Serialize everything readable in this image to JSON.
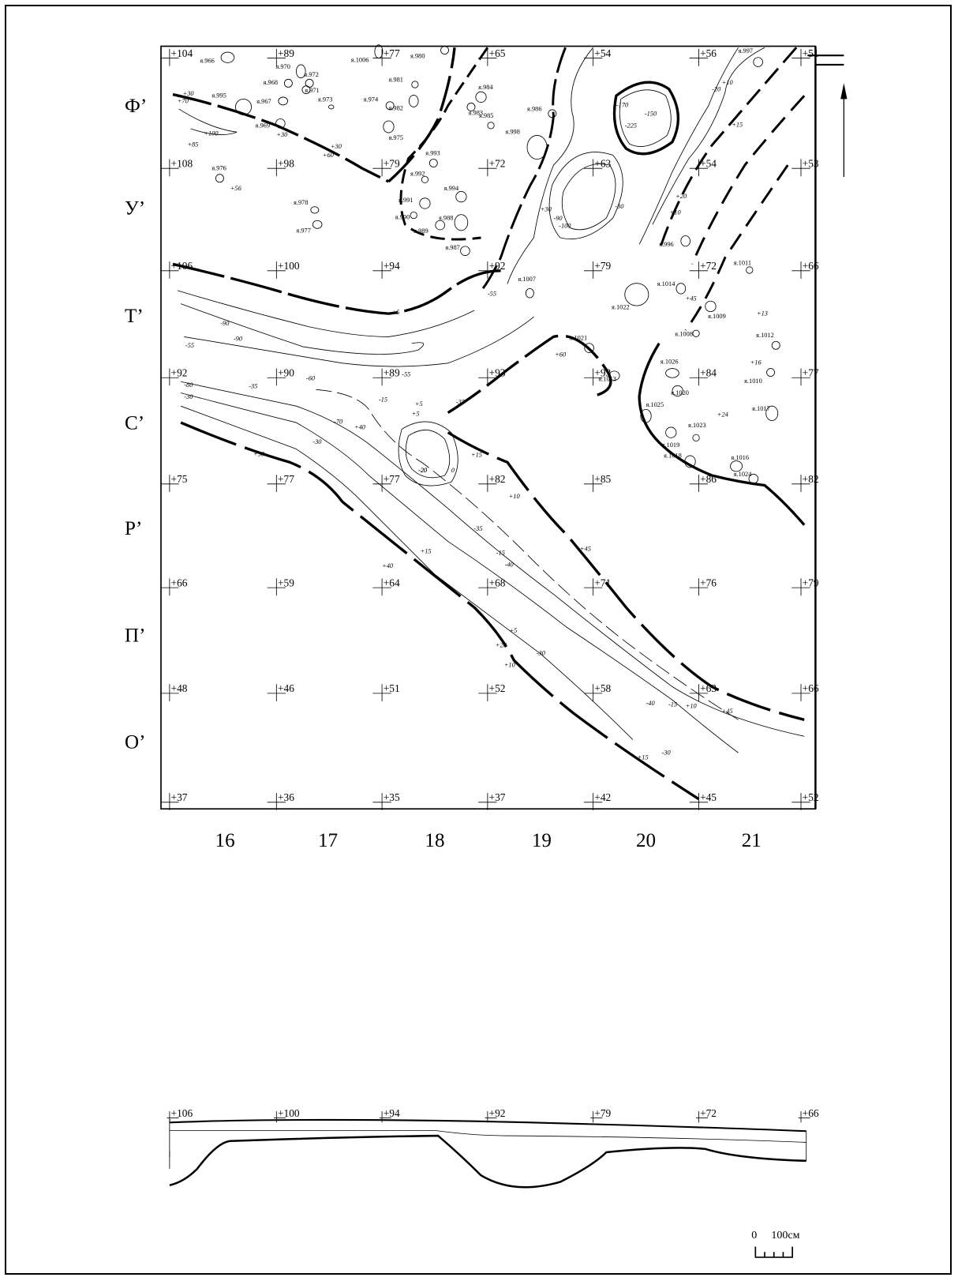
{
  "plan": {
    "row_labels": [
      "Ф’",
      "У’",
      "Т’",
      "С’",
      "Р’",
      "П’",
      "О’"
    ],
    "column_labels": [
      "16",
      "17",
      "18",
      "19",
      "20",
      "21"
    ],
    "elevations": [
      [
        "+104",
        "+89",
        "+77",
        "+65",
        "+54",
        "+56",
        "+51"
      ],
      [
        "+108",
        "+98",
        "+79",
        "+72",
        "+63",
        "+54",
        "+53"
      ],
      [
        "+106",
        "+100",
        "+94",
        "+92",
        "+79",
        "+72",
        "+66"
      ],
      [
        "+92",
        "+90",
        "+89",
        "+93",
        "+93",
        "+84",
        "+77"
      ],
      [
        "+75",
        "+77",
        "+77",
        "+82",
        "+85",
        "+86",
        "+82"
      ],
      [
        "+66",
        "+59",
        "+64",
        "+68",
        "+71",
        "+76",
        "+79"
      ],
      [
        "+48",
        "+46",
        "+51",
        "+52",
        "+58",
        "+63",
        "+66"
      ],
      [
        "+37",
        "+36",
        "+35",
        "+37",
        "+42",
        "+45",
        "+52"
      ]
    ],
    "pits": [
      {
        "label": "я.966"
      },
      {
        "label": "я.970"
      },
      {
        "label": "я.968"
      },
      {
        "label": "я.972"
      },
      {
        "label": "я.971"
      },
      {
        "label": "я.967"
      },
      {
        "label": "я.995"
      },
      {
        "label": "я.973"
      },
      {
        "label": "я.969"
      },
      {
        "label": "я.974"
      },
      {
        "label": "я.975"
      },
      {
        "label": "я.1006"
      },
      {
        "label": "я.980"
      },
      {
        "label": "я.981"
      },
      {
        "label": "я.982"
      },
      {
        "label": "я.984"
      },
      {
        "label": "я.983"
      },
      {
        "label": "я.985"
      },
      {
        "label": "я.986"
      },
      {
        "label": "я.998"
      },
      {
        "label": "я.997"
      },
      {
        "label": "я.976"
      },
      {
        "label": "я.978"
      },
      {
        "label": "я.977"
      },
      {
        "label": "я.993"
      },
      {
        "label": "я.992"
      },
      {
        "label": "я.991"
      },
      {
        "label": "я.994"
      },
      {
        "label": "я.988"
      },
      {
        "label": "я.990"
      },
      {
        "label": "я.989"
      },
      {
        "label": "я.987"
      },
      {
        "label": "я.996"
      },
      {
        "label": "я.1007"
      },
      {
        "label": "я.1014"
      },
      {
        "label": "я.1011"
      },
      {
        "label": "я.1022"
      },
      {
        "label": "я.1009"
      },
      {
        "label": "я.1008"
      },
      {
        "label": "я.1012"
      },
      {
        "label": "я.1021"
      },
      {
        "label": "я.1026"
      },
      {
        "label": "я.1010"
      },
      {
        "label": "я.1013"
      },
      {
        "label": "я.1020"
      },
      {
        "label": "я.1017"
      },
      {
        "label": "я.1025"
      },
      {
        "label": "я.1019"
      },
      {
        "label": "я.1023"
      },
      {
        "label": "я.1018"
      },
      {
        "label": "я.1016"
      },
      {
        "label": "я.1024"
      },
      {
        "label": "я.1015"
      }
    ],
    "contour_labels": [
      "+30",
      "+70",
      "+100",
      "+85",
      "+30",
      "+60",
      "+30",
      "-150",
      "-170",
      "-225",
      "+10",
      "+15",
      "-20",
      "+56",
      "-100",
      "-90",
      "-30",
      "+10",
      "+20",
      "+30",
      "-55",
      "-90",
      "-90",
      "-55",
      "+5",
      "-55",
      "-60",
      "-80",
      "-30",
      "-35",
      "-15",
      "+5",
      "-20",
      "0",
      "+15",
      "+45",
      "+50",
      "-70",
      "-30",
      "+40",
      "+10",
      "+45",
      "-15",
      "-35",
      "-40",
      "+40",
      "+15",
      "+20",
      "+5",
      "+10",
      "-30",
      "-40",
      "-15",
      "+10",
      "+15",
      "-30",
      "+45",
      "+13",
      "+16",
      "+24",
      "+5",
      "-35",
      "-20",
      "+60"
    ]
  },
  "section": {
    "elevations": [
      "+106",
      "+100",
      "+94",
      "+92",
      "+79",
      "+72",
      "+66"
    ]
  },
  "scale_bar": {
    "zero_label": "0",
    "length_label": "100см"
  },
  "north_arrow": {
    "icon": "north-arrow-icon"
  }
}
